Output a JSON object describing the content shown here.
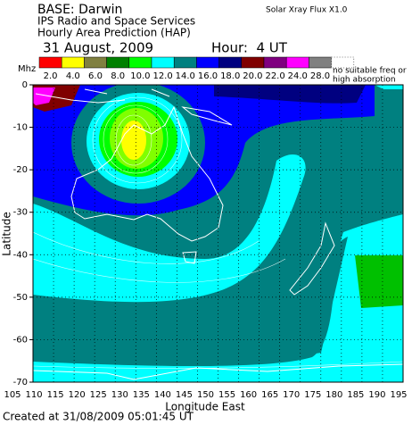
{
  "header": {
    "base": "BASE: Darwin",
    "org": "IPS Radio and Space Services",
    "product": "Hourly Area Prediction (HAP)",
    "date": "31 August, 2009",
    "hour": "Hour:  4 UT",
    "flux": "Solar Xray Flux X1.0"
  },
  "legend": {
    "unit": "Mhz",
    "items": [
      {
        "label": "2.0",
        "color": "#ff0000"
      },
      {
        "label": "4.0",
        "color": "#ffff00"
      },
      {
        "label": "6.0",
        "color": "#808040"
      },
      {
        "label": "8.0",
        "color": "#008000"
      },
      {
        "label": "10.0",
        "color": "#00ff00"
      },
      {
        "label": "12.0",
        "color": "#00ffff"
      },
      {
        "label": "14.0",
        "color": "#008080"
      },
      {
        "label": "16.0",
        "color": "#0000ff"
      },
      {
        "label": "18.0",
        "color": "#000080"
      },
      {
        "label": "20.0",
        "color": "#800000"
      },
      {
        "label": "22.0",
        "color": "#800080"
      },
      {
        "label": "24.0",
        "color": "#ff00ff"
      },
      {
        "label": "28.0",
        "color": "#808080"
      }
    ],
    "none": [
      "no suitable freq or",
      "high absorption"
    ]
  },
  "map": {
    "xlabel": "Longitude East",
    "ylabel": "Latitude",
    "xlim": [
      105,
      195
    ],
    "ylim": [
      -70,
      0
    ],
    "xticks": [
      105,
      110,
      115,
      120,
      125,
      130,
      135,
      140,
      145,
      150,
      155,
      160,
      165,
      170,
      175,
      180,
      185,
      190,
      195
    ],
    "yticks": [
      0,
      -10,
      -20,
      -30,
      -40,
      -50,
      -60,
      -70
    ]
  },
  "footer": "Created at 31/08/2009 05:01:45 UT"
}
